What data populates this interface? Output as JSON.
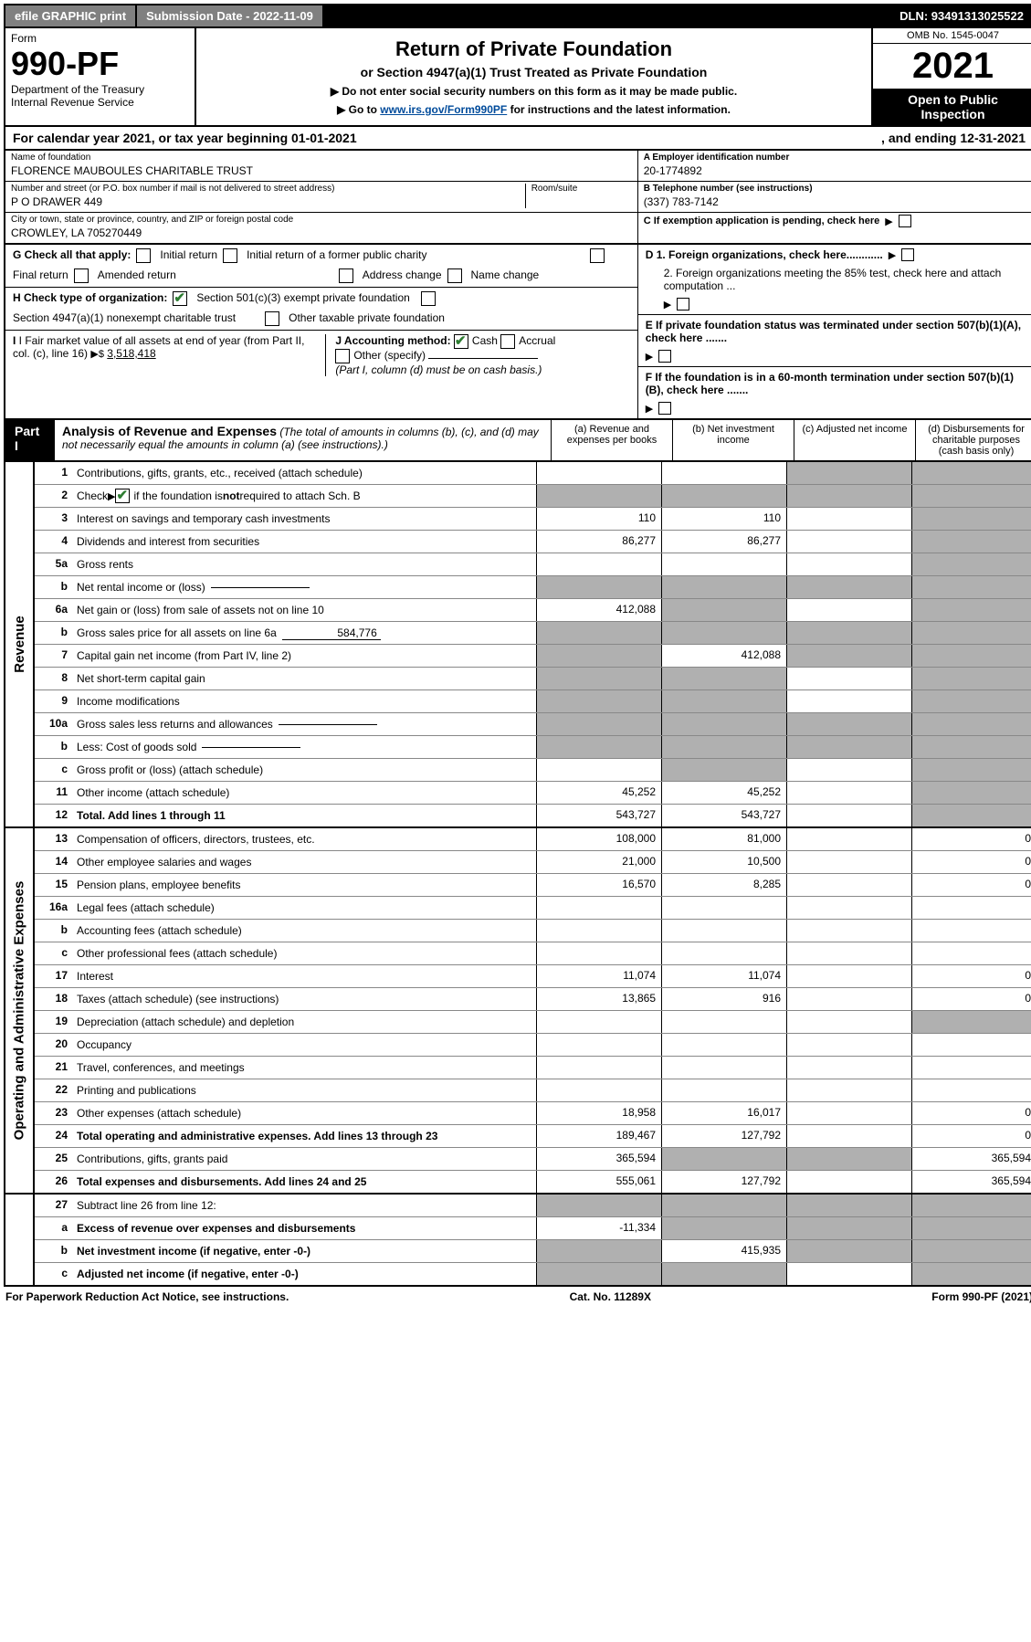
{
  "topbar": {
    "efile": "efile GRAPHIC print",
    "submission": "Submission Date - 2022-11-09",
    "dln": "DLN: 93491313025522"
  },
  "header": {
    "form_label": "Form",
    "form_number": "990-PF",
    "dept": "Department of the Treasury",
    "irs": "Internal Revenue Service",
    "title": "Return of Private Foundation",
    "subtitle": "or Section 4947(a)(1) Trust Treated as Private Foundation",
    "instr1": "▶ Do not enter social security numbers on this form as it may be made public.",
    "instr2_prefix": "▶ Go to ",
    "instr2_link": "www.irs.gov/Form990PF",
    "instr2_suffix": " for instructions and the latest information.",
    "omb": "OMB No. 1545-0047",
    "year": "2021",
    "open": "Open to Public Inspection"
  },
  "calendar": {
    "left": "For calendar year 2021, or tax year beginning 01-01-2021",
    "right": ", and ending 12-31-2021"
  },
  "id": {
    "name_label": "Name of foundation",
    "name": "FLORENCE MAUBOULES CHARITABLE TRUST",
    "addr_label": "Number and street (or P.O. box number if mail is not delivered to street address)",
    "room_label": "Room/suite",
    "addr": "P O DRAWER 449",
    "city_label": "City or town, state or province, country, and ZIP or foreign postal code",
    "city": "CROWLEY, LA  705270449",
    "ein_label": "A Employer identification number",
    "ein": "20-1774892",
    "phone_label": "B Telephone number (see instructions)",
    "phone": "(337) 783-7142",
    "c_label": "C If exemption application is pending, check here",
    "d1": "D 1. Foreign organizations, check here............",
    "d2": "2. Foreign organizations meeting the 85% test, check here and attach computation ...",
    "e": "E  If private foundation status was terminated under section 507(b)(1)(A), check here .......",
    "f": "F  If the foundation is in a 60-month termination under section 507(b)(1)(B), check here .......",
    "g_label": "G Check all that apply:",
    "g_opts": [
      "Initial return",
      "Initial return of a former public charity",
      "Final return",
      "Amended return",
      "Address change",
      "Name change"
    ],
    "h_label": "H Check type of organization:",
    "h_opt1": "Section 501(c)(3) exempt private foundation",
    "h_opt2": "Section 4947(a)(1) nonexempt charitable trust",
    "h_opt3": "Other taxable private foundation",
    "i_label": "I Fair market value of all assets at end of year (from Part II, col. (c), line 16)",
    "i_value": "3,518,418",
    "j_label": "J Accounting method:",
    "j_cash": "Cash",
    "j_accrual": "Accrual",
    "j_other": "Other (specify)",
    "j_note": "(Part I, column (d) must be on cash basis.)"
  },
  "colors": {
    "topbar_bg": "#808080",
    "black": "#000000",
    "grey_cell": "#b0b0b0",
    "link": "#004b9b",
    "check_green": "#2e7d32"
  },
  "part1": {
    "label": "Part I",
    "title": "Analysis of Revenue and Expenses",
    "note": "(The total of amounts in columns (b), (c), and (d) may not necessarily equal the amounts in column (a) (see instructions).)",
    "cols": {
      "a": "(a) Revenue and expenses per books",
      "b": "(b) Net investment income",
      "c": "(c) Adjusted net income",
      "d": "(d) Disbursements for charitable purposes (cash basis only)"
    }
  },
  "sections": {
    "revenue": "Revenue",
    "opex": "Operating and Administrative Expenses"
  },
  "rows": [
    {
      "n": "1",
      "desc": "Contributions, gifts, grants, etc., received (attach schedule)",
      "a": "",
      "b": "",
      "c": "",
      "d": "",
      "grey": {
        "c": true,
        "d": true
      },
      "sec": "rev"
    },
    {
      "n": "2",
      "desc": "Check ▶ ✔ if the foundation is not required to attach Sch. B",
      "a": "",
      "b": "",
      "c": "",
      "d": "",
      "grey": {
        "a": true,
        "b": true,
        "c": true,
        "d": true
      },
      "sec": "rev",
      "hasCheck": true
    },
    {
      "n": "3",
      "desc": "Interest on savings and temporary cash investments",
      "a": "110",
      "b": "110",
      "c": "",
      "d": "",
      "grey": {
        "d": true
      },
      "sec": "rev"
    },
    {
      "n": "4",
      "desc": "Dividends and interest from securities",
      "a": "86,277",
      "b": "86,277",
      "c": "",
      "d": "",
      "grey": {
        "d": true
      },
      "sec": "rev"
    },
    {
      "n": "5a",
      "desc": "Gross rents",
      "a": "",
      "b": "",
      "c": "",
      "d": "",
      "grey": {
        "d": true
      },
      "sec": "rev"
    },
    {
      "n": "b",
      "desc": "Net rental income or (loss)",
      "a": "",
      "b": "",
      "c": "",
      "d": "",
      "grey": {
        "a": true,
        "b": true,
        "c": true,
        "d": true
      },
      "sec": "rev",
      "inner": ""
    },
    {
      "n": "6a",
      "desc": "Net gain or (loss) from sale of assets not on line 10",
      "a": "412,088",
      "b": "",
      "c": "",
      "d": "",
      "grey": {
        "b": true,
        "d": true
      },
      "sec": "rev"
    },
    {
      "n": "b",
      "desc": "Gross sales price for all assets on line 6a",
      "a": "",
      "b": "",
      "c": "",
      "d": "",
      "grey": {
        "a": true,
        "b": true,
        "c": true,
        "d": true
      },
      "sec": "rev",
      "inner": "584,776"
    },
    {
      "n": "7",
      "desc": "Capital gain net income (from Part IV, line 2)",
      "a": "",
      "b": "412,088",
      "c": "",
      "d": "",
      "grey": {
        "a": true,
        "c": true,
        "d": true
      },
      "sec": "rev"
    },
    {
      "n": "8",
      "desc": "Net short-term capital gain",
      "a": "",
      "b": "",
      "c": "",
      "d": "",
      "grey": {
        "a": true,
        "b": true,
        "d": true
      },
      "sec": "rev"
    },
    {
      "n": "9",
      "desc": "Income modifications",
      "a": "",
      "b": "",
      "c": "",
      "d": "",
      "grey": {
        "a": true,
        "b": true,
        "d": true
      },
      "sec": "rev"
    },
    {
      "n": "10a",
      "desc": "Gross sales less returns and allowances",
      "a": "",
      "b": "",
      "c": "",
      "d": "",
      "grey": {
        "a": true,
        "b": true,
        "c": true,
        "d": true
      },
      "sec": "rev",
      "inner": ""
    },
    {
      "n": "b",
      "desc": "Less: Cost of goods sold",
      "a": "",
      "b": "",
      "c": "",
      "d": "",
      "grey": {
        "a": true,
        "b": true,
        "c": true,
        "d": true
      },
      "sec": "rev",
      "inner": ""
    },
    {
      "n": "c",
      "desc": "Gross profit or (loss) (attach schedule)",
      "a": "",
      "b": "",
      "c": "",
      "d": "",
      "grey": {
        "b": true,
        "d": true
      },
      "sec": "rev"
    },
    {
      "n": "11",
      "desc": "Other income (attach schedule)",
      "a": "45,252",
      "b": "45,252",
      "c": "",
      "d": "",
      "grey": {
        "d": true
      },
      "sec": "rev"
    },
    {
      "n": "12",
      "desc": "Total. Add lines 1 through 11",
      "a": "543,727",
      "b": "543,727",
      "c": "",
      "d": "",
      "grey": {
        "d": true
      },
      "sec": "rev",
      "bold": true
    },
    {
      "n": "13",
      "desc": "Compensation of officers, directors, trustees, etc.",
      "a": "108,000",
      "b": "81,000",
      "c": "",
      "d": "0",
      "sec": "op"
    },
    {
      "n": "14",
      "desc": "Other employee salaries and wages",
      "a": "21,000",
      "b": "10,500",
      "c": "",
      "d": "0",
      "sec": "op"
    },
    {
      "n": "15",
      "desc": "Pension plans, employee benefits",
      "a": "16,570",
      "b": "8,285",
      "c": "",
      "d": "0",
      "sec": "op"
    },
    {
      "n": "16a",
      "desc": "Legal fees (attach schedule)",
      "a": "",
      "b": "",
      "c": "",
      "d": "",
      "sec": "op"
    },
    {
      "n": "b",
      "desc": "Accounting fees (attach schedule)",
      "a": "",
      "b": "",
      "c": "",
      "d": "",
      "sec": "op"
    },
    {
      "n": "c",
      "desc": "Other professional fees (attach schedule)",
      "a": "",
      "b": "",
      "c": "",
      "d": "",
      "sec": "op"
    },
    {
      "n": "17",
      "desc": "Interest",
      "a": "11,074",
      "b": "11,074",
      "c": "",
      "d": "0",
      "sec": "op"
    },
    {
      "n": "18",
      "desc": "Taxes (attach schedule) (see instructions)",
      "a": "13,865",
      "b": "916",
      "c": "",
      "d": "0",
      "sec": "op"
    },
    {
      "n": "19",
      "desc": "Depreciation (attach schedule) and depletion",
      "a": "",
      "b": "",
      "c": "",
      "d": "",
      "grey": {
        "d": true
      },
      "sec": "op"
    },
    {
      "n": "20",
      "desc": "Occupancy",
      "a": "",
      "b": "",
      "c": "",
      "d": "",
      "sec": "op"
    },
    {
      "n": "21",
      "desc": "Travel, conferences, and meetings",
      "a": "",
      "b": "",
      "c": "",
      "d": "",
      "sec": "op"
    },
    {
      "n": "22",
      "desc": "Printing and publications",
      "a": "",
      "b": "",
      "c": "",
      "d": "",
      "sec": "op"
    },
    {
      "n": "23",
      "desc": "Other expenses (attach schedule)",
      "a": "18,958",
      "b": "16,017",
      "c": "",
      "d": "0",
      "sec": "op"
    },
    {
      "n": "24",
      "desc": "Total operating and administrative expenses. Add lines 13 through 23",
      "a": "189,467",
      "b": "127,792",
      "c": "",
      "d": "0",
      "sec": "op",
      "bold": true
    },
    {
      "n": "25",
      "desc": "Contributions, gifts, grants paid",
      "a": "365,594",
      "b": "",
      "c": "",
      "d": "365,594",
      "grey": {
        "b": true,
        "c": true
      },
      "sec": "op"
    },
    {
      "n": "26",
      "desc": "Total expenses and disbursements. Add lines 24 and 25",
      "a": "555,061",
      "b": "127,792",
      "c": "",
      "d": "365,594",
      "sec": "op",
      "bold": true
    },
    {
      "n": "27",
      "desc": "Subtract line 26 from line 12:",
      "a": "",
      "b": "",
      "c": "",
      "d": "",
      "grey": {
        "a": true,
        "b": true,
        "c": true,
        "d": true
      },
      "sec": "bot"
    },
    {
      "n": "a",
      "desc": "Excess of revenue over expenses and disbursements",
      "a": "-11,334",
      "b": "",
      "c": "",
      "d": "",
      "grey": {
        "b": true,
        "c": true,
        "d": true
      },
      "sec": "bot",
      "bold": true
    },
    {
      "n": "b",
      "desc": "Net investment income (if negative, enter -0-)",
      "a": "",
      "b": "415,935",
      "c": "",
      "d": "",
      "grey": {
        "a": true,
        "c": true,
        "d": true
      },
      "sec": "bot",
      "bold": true
    },
    {
      "n": "c",
      "desc": "Adjusted net income (if negative, enter -0-)",
      "a": "",
      "b": "",
      "c": "",
      "d": "",
      "grey": {
        "a": true,
        "b": true,
        "d": true
      },
      "sec": "bot",
      "bold": true
    }
  ],
  "footer": {
    "left": "For Paperwork Reduction Act Notice, see instructions.",
    "mid": "Cat. No. 11289X",
    "right": "Form 990-PF (2021)"
  }
}
